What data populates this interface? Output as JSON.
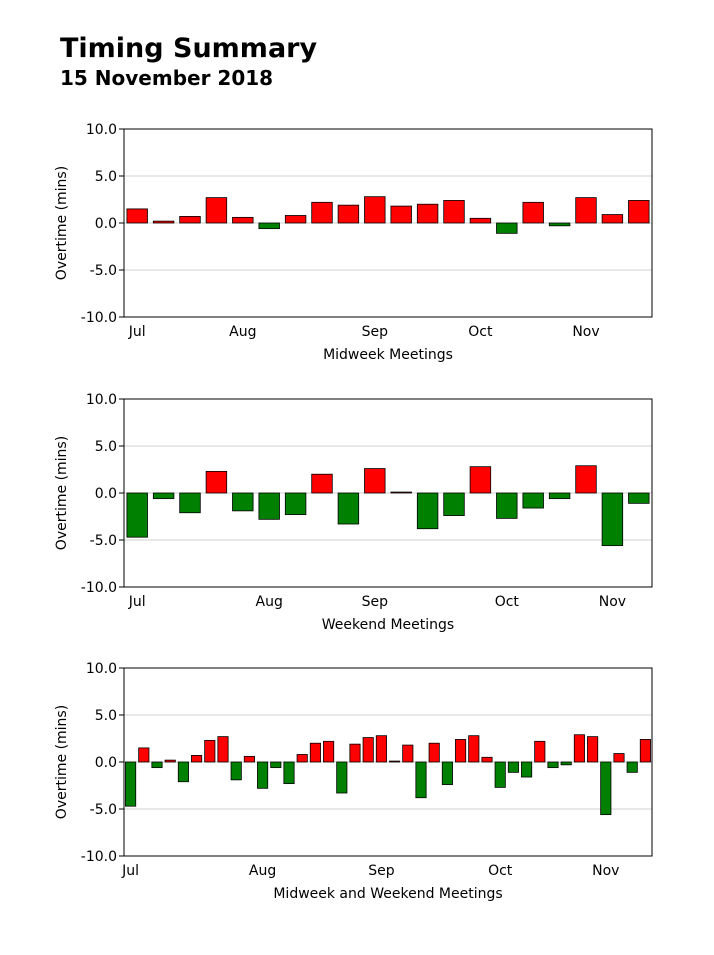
{
  "title": "Timing Summary",
  "date": "15 November 2018",
  "colors": {
    "positive": "#ff0000",
    "negative": "#008000",
    "grid": "#d0d0d0",
    "frame": "#000000"
  },
  "charts": [
    {
      "type": "bar",
      "xlabel": "Midweek Meetings",
      "ylabel": "Overtime (mins)",
      "ylim": [
        -10,
        10
      ],
      "yticks": [
        "10.0",
        "5.0",
        "0.0",
        "-5.0",
        "-10.0"
      ],
      "months": [
        {
          "label": "Jul",
          "at": 0.5
        },
        {
          "label": "Aug",
          "at": 4.5
        },
        {
          "label": "Sep",
          "at": 9.5
        },
        {
          "label": "Oct",
          "at": 13.5
        },
        {
          "label": "Nov",
          "at": 17.5
        }
      ],
      "values": [
        1.5,
        0.2,
        0.7,
        2.7,
        0.6,
        -0.6,
        0.8,
        2.2,
        1.9,
        2.8,
        1.8,
        2.0,
        2.4,
        0.5,
        -1.1,
        2.2,
        -0.3,
        2.7,
        0.9,
        2.4
      ]
    },
    {
      "type": "bar",
      "xlabel": "Weekend Meetings",
      "ylabel": "Overtime (mins)",
      "ylim": [
        -10,
        10
      ],
      "yticks": [
        "10.0",
        "5.0",
        "0.0",
        "-5.0",
        "-10.0"
      ],
      "months": [
        {
          "label": "Jul",
          "at": 0.5
        },
        {
          "label": "Aug",
          "at": 5.5
        },
        {
          "label": "Sep",
          "at": 9.5
        },
        {
          "label": "Oct",
          "at": 14.5
        },
        {
          "label": "Nov",
          "at": 18.5
        }
      ],
      "values": [
        -4.7,
        -0.6,
        -2.1,
        2.3,
        -1.9,
        -2.8,
        -2.3,
        2.0,
        -3.3,
        2.6,
        0.1,
        -3.8,
        -2.4,
        2.8,
        -2.7,
        -1.6,
        -0.6,
        2.9,
        -5.6,
        -1.1
      ]
    },
    {
      "type": "bar",
      "xlabel": "Midweek and Weekend Meetings",
      "ylabel": "Overtime (mins)",
      "ylim": [
        -10,
        10
      ],
      "yticks": [
        "10.0",
        "5.0",
        "0.0",
        "-5.0",
        "-10.0"
      ],
      "months": [
        {
          "label": "Jul",
          "at": 0.5
        },
        {
          "label": "Aug",
          "at": 10.5
        },
        {
          "label": "Sep",
          "at": 19.5
        },
        {
          "label": "Oct",
          "at": 28.5
        },
        {
          "label": "Nov",
          "at": 36.5
        }
      ],
      "values": [
        -4.7,
        1.5,
        -0.6,
        0.2,
        -2.1,
        0.7,
        2.3,
        2.7,
        -1.9,
        0.6,
        -2.8,
        -0.6,
        -2.3,
        0.8,
        2.0,
        2.2,
        -3.3,
        1.9,
        2.6,
        2.8,
        0.1,
        1.8,
        -3.8,
        2.0,
        -2.4,
        2.4,
        2.8,
        0.5,
        -2.7,
        -1.1,
        -1.6,
        2.2,
        -0.6,
        -0.3,
        2.9,
        2.7,
        -5.6,
        0.9,
        -1.1,
        2.4
      ]
    }
  ]
}
